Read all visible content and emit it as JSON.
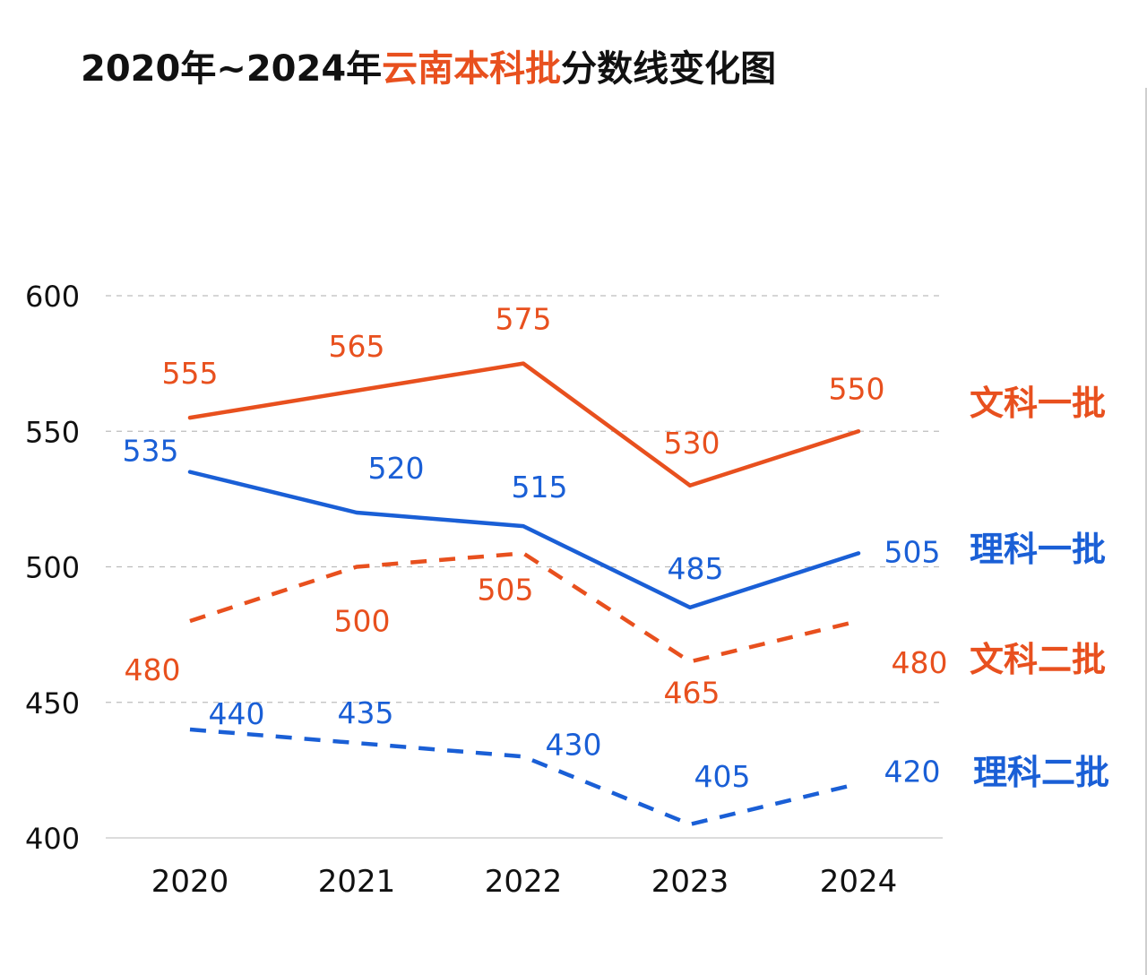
{
  "title": {
    "part1": "2020年~2024年",
    "part2": "云南本科批",
    "part3": "分数线变化图"
  },
  "colors": {
    "orange": "#e8501e",
    "blue": "#1a5fd6",
    "grid": "#bdbdbd",
    "text": "#111111"
  },
  "chart_data": {
    "type": "line",
    "title": "2020年~2024年云南本科批分数线变化图",
    "x": [
      "2020",
      "2021",
      "2022",
      "2023",
      "2024"
    ],
    "ylim": [
      400,
      600
    ],
    "yticks": [
      400,
      450,
      500,
      550,
      600
    ],
    "grid": true,
    "series": [
      {
        "name": "文科一批",
        "values": [
          555,
          565,
          575,
          530,
          550
        ],
        "color": "#e8501e",
        "dashed": false
      },
      {
        "name": "理科一批",
        "values": [
          535,
          520,
          515,
          485,
          505
        ],
        "color": "#1a5fd6",
        "dashed": false
      },
      {
        "name": "文科二批",
        "values": [
          480,
          500,
          505,
          465,
          480
        ],
        "color": "#e8501e",
        "dashed": true
      },
      {
        "name": "理科二批",
        "values": [
          440,
          435,
          430,
          405,
          420
        ],
        "color": "#1a5fd6",
        "dashed": true
      }
    ]
  }
}
